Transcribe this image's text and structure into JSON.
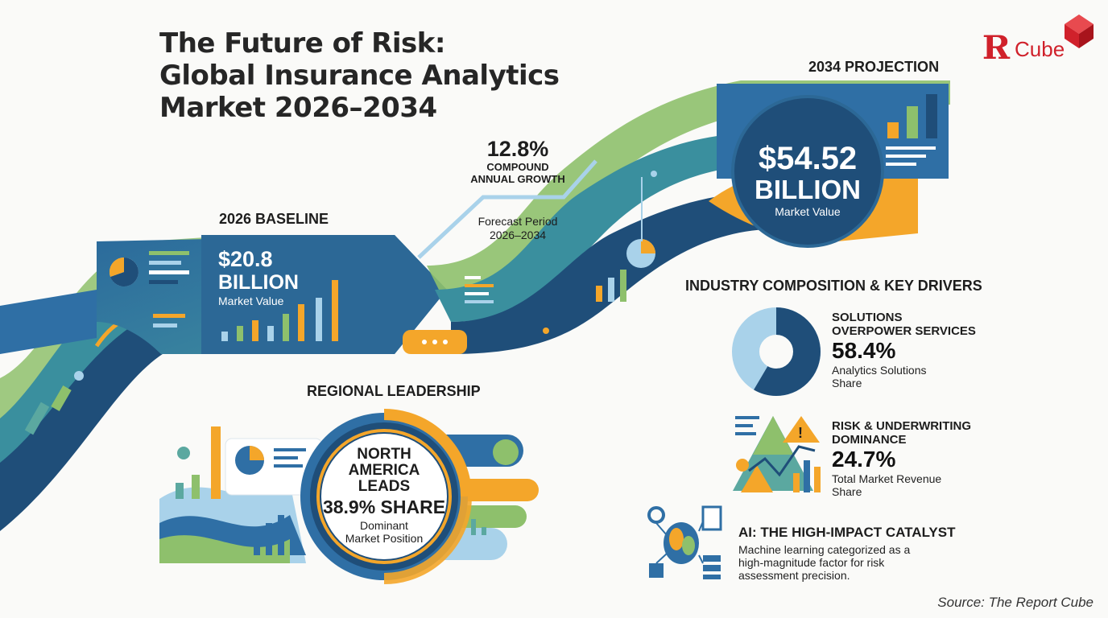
{
  "title": {
    "line1": "The Future of Risk:",
    "line2": "Global Insurance Analytics",
    "line3": "Market 2026–2034"
  },
  "logo": {
    "mark": "Я",
    "word": "Cube"
  },
  "growth": {
    "rate": "12.8%",
    "label_line1": "COMPOUND",
    "label_line2": "ANNUAL GROWTH",
    "period_line1": "Forecast Period",
    "period_line2": "2026–2034"
  },
  "baseline": {
    "heading": "2026 BASELINE",
    "value_line1": "$20.8",
    "value_line2": "BILLION",
    "caption": "Market Value"
  },
  "projection": {
    "heading": "2034 PROJECTION",
    "value_line1": "$54.52",
    "value_line2": "BILLION",
    "caption": "Market Value"
  },
  "regional": {
    "heading": "REGIONAL LEADERSHIP",
    "line1": "NORTH",
    "line2": "AMERICA",
    "line3": "LEADS",
    "share": "38.9% SHARE",
    "caption_line1": "Dominant",
    "caption_line2": "Market Position"
  },
  "industry": {
    "heading": "INDUSTRY COMPOSITION & KEY DRIVERS",
    "solutions": {
      "title_line1": "SOLUTIONS",
      "title_line2": "OVERPOWER SERVICES",
      "value": "58.4%",
      "sub_line1": "Analytics Solutions",
      "sub_line2": "Share",
      "fraction": 0.584
    },
    "risk": {
      "title_line1": "RISK & UNDERWRITING",
      "title_line2": "DOMINANCE",
      "value": "24.7%",
      "sub_line1": "Total Market Revenue",
      "sub_line2": "Share"
    },
    "ai": {
      "title": "AI: THE HIGH-IMPACT CATALYST",
      "sub_line1": "Machine learning categorized as a",
      "sub_line2": "high-magnitude factor for risk",
      "sub_line3": "assessment precision."
    }
  },
  "source": "Source: The Report Cube",
  "colors": {
    "navy": "#1f4e79",
    "blue": "#2f6fa5",
    "teal": "#5ba8a0",
    "green": "#8ec06c",
    "orange": "#f4a62a",
    "light_blue": "#a9d2ea",
    "red": "#d0212b"
  }
}
